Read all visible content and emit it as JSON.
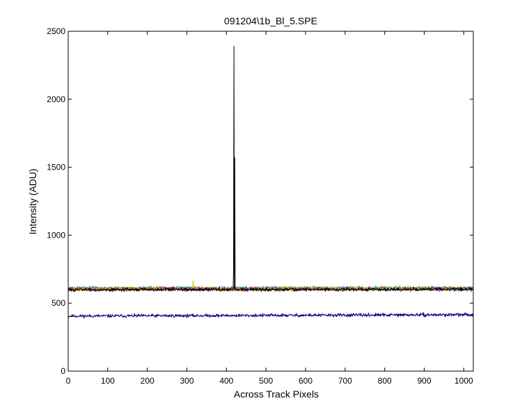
{
  "chart_data": {
    "type": "line",
    "title": "091204\\1b_Bl_5.SPE",
    "xlabel": "Across Track Pixels",
    "ylabel": "Intensity (ADU)",
    "xlim": [
      0,
      1024
    ],
    "ylim": [
      0,
      2500
    ],
    "xticks": [
      0,
      100,
      200,
      300,
      400,
      500,
      600,
      700,
      800,
      900,
      1000
    ],
    "yticks": [
      0,
      500,
      1000,
      1500,
      2000,
      2500
    ],
    "grid": false,
    "legend": "none",
    "series": [
      {
        "color": "#000080",
        "baseline": 405,
        "end_value": 415,
        "noise": 6,
        "seed": 11,
        "spikes": []
      },
      {
        "color": "#0000ff",
        "baseline": 603,
        "end_value": 603,
        "noise": 7,
        "seed": 23,
        "spikes": []
      },
      {
        "color": "#008000",
        "baseline": 606,
        "end_value": 608,
        "noise": 7,
        "seed": 37,
        "spikes": []
      },
      {
        "color": "#ff0000",
        "baseline": 604,
        "end_value": 606,
        "noise": 7,
        "seed": 41,
        "spikes": []
      },
      {
        "color": "#00bfbf",
        "baseline": 608,
        "end_value": 610,
        "noise": 7,
        "seed": 53,
        "spikes": []
      },
      {
        "color": "#bf00bf",
        "baseline": 605,
        "end_value": 607,
        "noise": 7,
        "seed": 67,
        "spikes": []
      },
      {
        "color": "#bfbf00",
        "baseline": 606,
        "end_value": 607,
        "noise": 7,
        "seed": 71,
        "spikes": [
          {
            "x": 316,
            "y": 665
          }
        ]
      },
      {
        "color": "#000000",
        "baseline": 600,
        "end_value": 603,
        "noise": 6,
        "seed": 83,
        "spikes": [
          {
            "x": 418,
            "y": 780
          },
          {
            "x": 419,
            "y": 2390
          },
          {
            "x": 420,
            "y": 600
          },
          {
            "x": 421,
            "y": 1570
          },
          {
            "x": 422,
            "y": 600
          }
        ]
      }
    ]
  }
}
